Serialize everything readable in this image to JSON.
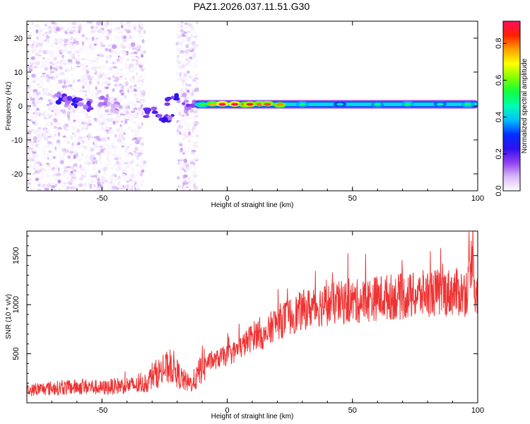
{
  "figure_title": "PAZ1.2026.037.11.51.G30",
  "chart_data": [
    {
      "type": "heatmap",
      "id": "spectrogram",
      "title": "PAZ1.2026.037.11.51.G30",
      "xlabel": "Height of straight line (km)",
      "ylabel": "Frequency (Hz)",
      "xlim": [
        -80,
        100
      ],
      "ylim": [
        -25,
        25
      ],
      "xticks": [
        -50,
        0,
        50,
        100
      ],
      "yticks": [
        -20,
        -10,
        0,
        10,
        20
      ],
      "colorbar": {
        "label": "Normalized spectral amplitude",
        "range": [
          0,
          0.92
        ],
        "ticks": [
          0.0,
          0.2,
          0.4,
          0.6,
          0.8
        ],
        "tick_labels": [
          "0.0",
          "0.2",
          "0.4",
          "0.6",
          "0.8"
        ],
        "colormap": [
          "#ffffff",
          "#d8b8f8",
          "#9040f0",
          "#3010f0",
          "#0030ff",
          "#00c0ff",
          "#00ffb0",
          "#10ff40",
          "#80ff00",
          "#ffff00",
          "#ffa000",
          "#ff2000",
          "#ff1060"
        ]
      },
      "features": {
        "broadband_noise_x_ranges": [
          [
            -80,
            -33
          ],
          [
            -20,
            -12
          ]
        ],
        "band_center_hz": 0.5,
        "band_start_km": -13,
        "band_end_km": 100,
        "cluster_points": [
          {
            "x": -66,
            "y": 2.0,
            "v": 0.25
          },
          {
            "x": -62,
            "y": 1.5,
            "v": 0.28
          },
          {
            "x": -57,
            "y": 0.5,
            "v": 0.22
          },
          {
            "x": -49,
            "y": 1.0,
            "v": 0.16
          },
          {
            "x": -45,
            "y": -0.5,
            "v": 0.12
          },
          {
            "x": -31,
            "y": -2.0,
            "v": 0.22
          },
          {
            "x": -27,
            "y": -3.0,
            "v": 0.28
          },
          {
            "x": -24,
            "y": -3.5,
            "v": 0.25
          },
          {
            "x": -22,
            "y": 2.0,
            "v": 0.28
          },
          {
            "x": -15,
            "y": 0.0,
            "v": 0.18
          }
        ],
        "band_hotspots": [
          {
            "x": -10,
            "v": 0.55
          },
          {
            "x": -6,
            "v": 0.75
          },
          {
            "x": -2,
            "v": 0.9
          },
          {
            "x": 3,
            "v": 0.9
          },
          {
            "x": 7,
            "v": 0.8
          },
          {
            "x": 9,
            "v": 0.85
          },
          {
            "x": 13,
            "v": 0.8
          },
          {
            "x": 16,
            "v": 0.82
          },
          {
            "x": 21,
            "v": 0.78
          },
          {
            "x": 30,
            "v": 0.5
          },
          {
            "x": 45,
            "v": 0.42
          },
          {
            "x": 60,
            "v": 0.48
          },
          {
            "x": 72,
            "v": 0.5
          },
          {
            "x": 85,
            "v": 0.45
          },
          {
            "x": 96,
            "v": 0.5
          }
        ]
      }
    },
    {
      "type": "line",
      "id": "snr",
      "xlabel": "Height of straight line (km)",
      "ylabel": "SNR (10 * v/v)",
      "xlim": [
        -80,
        100
      ],
      "ylim": [
        0,
        1750
      ],
      "xticks": [
        -50,
        0,
        50,
        100
      ],
      "yticks": [
        500,
        1000,
        1500
      ],
      "color": "#ee3333",
      "series": [
        {
          "name": "SNR",
          "x": [
            -80,
            -75,
            -70,
            -65,
            -60,
            -55,
            -50,
            -45,
            -40,
            -35,
            -32,
            -30,
            -27,
            -25,
            -22,
            -20,
            -18,
            -15,
            -12,
            -10,
            -7,
            -5,
            -2,
            0,
            3,
            5,
            8,
            10,
            13,
            15,
            18,
            20,
            25,
            30,
            35,
            40,
            45,
            50,
            55,
            60,
            65,
            70,
            75,
            80,
            85,
            90,
            95,
            97,
            98,
            99,
            100
          ],
          "y": [
            120,
            140,
            150,
            155,
            160,
            165,
            150,
            170,
            180,
            175,
            200,
            280,
            310,
            340,
            380,
            300,
            240,
            190,
            260,
            390,
            420,
            430,
            470,
            480,
            520,
            560,
            620,
            680,
            720,
            650,
            790,
            820,
            880,
            940,
            980,
            1000,
            1020,
            1030,
            1040,
            1070,
            1080,
            1080,
            1090,
            1120,
            1120,
            1130,
            1120,
            1250,
            1650,
            1100,
            1120
          ]
        }
      ]
    }
  ]
}
